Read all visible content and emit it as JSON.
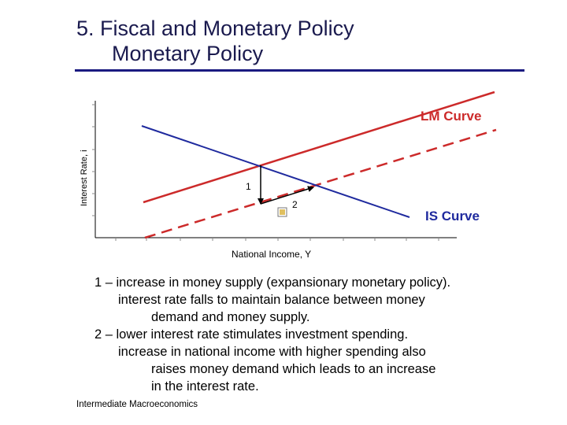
{
  "slide": {
    "title_line1": "5.  Fiscal and Monetary Policy",
    "title_line2": "Monetary Policy",
    "footer": "Intermediate Macroeconomics"
  },
  "diagram": {
    "y_axis_label": "Interest Rate, i",
    "x_axis_label": "National Income, Y",
    "lm_label": "LM Curve",
    "is_label": "IS Curve",
    "step1_label": "1",
    "step2_label": "2",
    "colors": {
      "lm": "#cc2a2a",
      "is": "#1f2a9e",
      "axis": "#000000",
      "arrow": "#000000"
    }
  },
  "notes": [
    "1 – increase in money supply (expansionary monetary policy).",
    "interest rate falls to maintain balance between money",
    "demand and money supply.",
    "2 – lower interest rate stimulates investment spending.",
    "increase in national income with higher spending also",
    "raises money demand which leads to an increase",
    "in the interest rate."
  ]
}
